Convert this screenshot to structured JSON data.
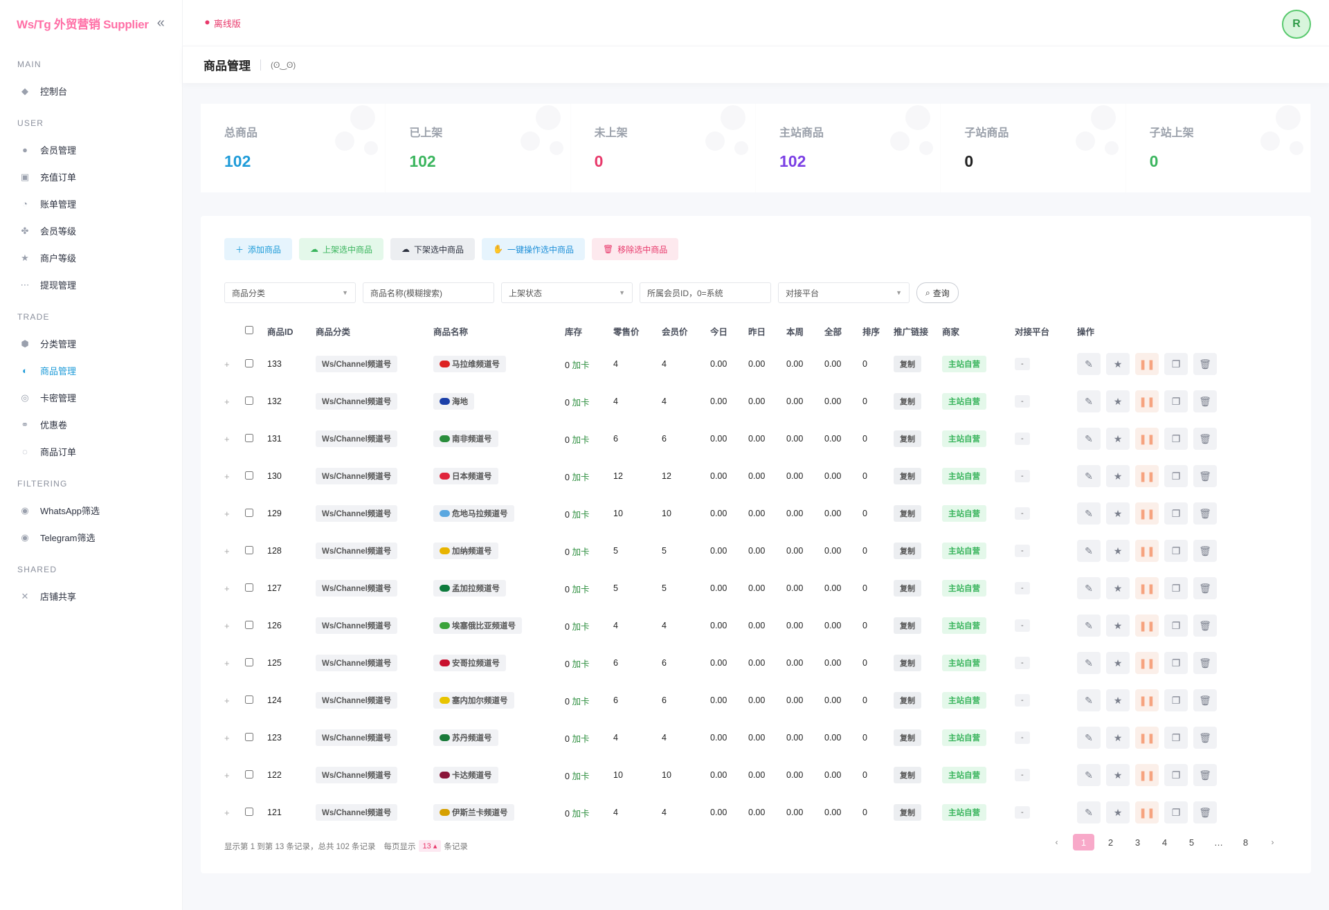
{
  "brand": "Ws/Tg 外贸营销 Supplier",
  "topbar": {
    "offline_label": "离线版"
  },
  "page": {
    "title": "商品管理",
    "emoji": "(ʘ‿ʘ)"
  },
  "sidebar": {
    "sections": [
      {
        "title": "MAIN",
        "items": [
          {
            "label": "控制台",
            "icon": "diamond-icon"
          }
        ]
      },
      {
        "title": "USER",
        "items": [
          {
            "label": "会员管理",
            "icon": "user-icon"
          },
          {
            "label": "充值订单",
            "icon": "card-icon"
          },
          {
            "label": "账单管理",
            "icon": "bill-icon"
          },
          {
            "label": "会员等级",
            "icon": "level-icon"
          },
          {
            "label": "商户等级",
            "icon": "star-icon"
          },
          {
            "label": "提现管理",
            "icon": "dots-icon"
          }
        ]
      },
      {
        "title": "TRADE",
        "items": [
          {
            "label": "分类管理",
            "icon": "category-icon"
          },
          {
            "label": "商品管理",
            "icon": "goods-icon",
            "active": true
          },
          {
            "label": "卡密管理",
            "icon": "key-icon"
          },
          {
            "label": "优惠卷",
            "icon": "coupon-icon"
          },
          {
            "label": "商品订单",
            "icon": "order-icon"
          }
        ]
      },
      {
        "title": "FILTERING",
        "items": [
          {
            "label": "WhatsApp筛选",
            "icon": "whatsapp-icon"
          },
          {
            "label": "Telegram筛选",
            "icon": "telegram-icon"
          }
        ]
      },
      {
        "title": "SHARED",
        "items": [
          {
            "label": "店铺共享",
            "icon": "share-icon"
          }
        ]
      }
    ]
  },
  "stats": [
    {
      "label": "总商品",
      "value": "102",
      "color": "#1e9bd8"
    },
    {
      "label": "已上架",
      "value": "102",
      "color": "#3bb55e"
    },
    {
      "label": "未上架",
      "value": "0",
      "color": "#e8396b"
    },
    {
      "label": "主站商品",
      "value": "102",
      "color": "#7b3fe4"
    },
    {
      "label": "子站商品",
      "value": "0",
      "color": "#222222"
    },
    {
      "label": "子站上架",
      "value": "0",
      "color": "#3bb55e"
    }
  ],
  "toolbar": {
    "add": "添加商品",
    "shelve": "上架选中商品",
    "unshelve": "下架选中商品",
    "batch": "一键操作选中商品",
    "remove": "移除选中商品"
  },
  "filters": {
    "category": "商品分类",
    "name_placeholder": "商品名称(模糊搜索)",
    "status": "上架状态",
    "member_placeholder": "所属会员ID，0=系统",
    "platform": "对接平台",
    "query": "查询"
  },
  "table": {
    "headers": [
      "商品ID",
      "商品分类",
      "商品名称",
      "库存",
      "零售价",
      "会员价",
      "今日",
      "昨日",
      "本周",
      "全部",
      "排序",
      "推广链接",
      "商家",
      "对接平台",
      "操作"
    ],
    "rows": [
      {
        "id": "133",
        "category": "Ws/Channel频道号",
        "name": "马拉维频道号",
        "flag": "#d22",
        "stock": "0",
        "stock_label": "加卡",
        "retail": "4",
        "member": "4",
        "today": "0.00",
        "yesterday": "0.00",
        "week": "0.00",
        "total": "0.00",
        "sort": "0",
        "link": "复制",
        "merchant": "主站自营",
        "platform": "-"
      },
      {
        "id": "132",
        "category": "Ws/Channel频道号",
        "name": "海地",
        "flag": "#1b3fa8",
        "stock": "0",
        "stock_label": "加卡",
        "retail": "4",
        "member": "4",
        "today": "0.00",
        "yesterday": "0.00",
        "week": "0.00",
        "total": "0.00",
        "sort": "0",
        "link": "复制",
        "merchant": "主站自营",
        "platform": "-"
      },
      {
        "id": "131",
        "category": "Ws/Channel频道号",
        "name": "南非频道号",
        "flag": "#2a8d3c",
        "stock": "0",
        "stock_label": "加卡",
        "retail": "6",
        "member": "6",
        "today": "0.00",
        "yesterday": "0.00",
        "week": "0.00",
        "total": "0.00",
        "sort": "0",
        "link": "复制",
        "merchant": "主站自营",
        "platform": "-"
      },
      {
        "id": "130",
        "category": "Ws/Channel频道号",
        "name": "日本频道号",
        "flag": "#e0243c",
        "stock": "0",
        "stock_label": "加卡",
        "retail": "12",
        "member": "12",
        "today": "0.00",
        "yesterday": "0.00",
        "week": "0.00",
        "total": "0.00",
        "sort": "0",
        "link": "复制",
        "merchant": "主站自营",
        "platform": "-"
      },
      {
        "id": "129",
        "category": "Ws/Channel频道号",
        "name": "危地马拉频道号",
        "flag": "#5aa7e0",
        "stock": "0",
        "stock_label": "加卡",
        "retail": "10",
        "member": "10",
        "today": "0.00",
        "yesterday": "0.00",
        "week": "0.00",
        "total": "0.00",
        "sort": "0",
        "link": "复制",
        "merchant": "主站自营",
        "platform": "-"
      },
      {
        "id": "128",
        "category": "Ws/Channel频道号",
        "name": "加纳频道号",
        "flag": "#e8b400",
        "stock": "0",
        "stock_label": "加卡",
        "retail": "5",
        "member": "5",
        "today": "0.00",
        "yesterday": "0.00",
        "week": "0.00",
        "total": "0.00",
        "sort": "0",
        "link": "复制",
        "merchant": "主站自营",
        "platform": "-"
      },
      {
        "id": "127",
        "category": "Ws/Channel频道号",
        "name": "孟加拉频道号",
        "flag": "#0d7a3c",
        "stock": "0",
        "stock_label": "加卡",
        "retail": "5",
        "member": "5",
        "today": "0.00",
        "yesterday": "0.00",
        "week": "0.00",
        "total": "0.00",
        "sort": "0",
        "link": "复制",
        "merchant": "主站自营",
        "platform": "-"
      },
      {
        "id": "126",
        "category": "Ws/Channel频道号",
        "name": "埃塞俄比亚频道号",
        "flag": "#3ba33b",
        "stock": "0",
        "stock_label": "加卡",
        "retail": "4",
        "member": "4",
        "today": "0.00",
        "yesterday": "0.00",
        "week": "0.00",
        "total": "0.00",
        "sort": "0",
        "link": "复制",
        "merchant": "主站自营",
        "platform": "-"
      },
      {
        "id": "125",
        "category": "Ws/Channel频道号",
        "name": "安哥拉频道号",
        "flag": "#c8102e",
        "stock": "0",
        "stock_label": "加卡",
        "retail": "6",
        "member": "6",
        "today": "0.00",
        "yesterday": "0.00",
        "week": "0.00",
        "total": "0.00",
        "sort": "0",
        "link": "复制",
        "merchant": "主站自营",
        "platform": "-"
      },
      {
        "id": "124",
        "category": "Ws/Channel频道号",
        "name": "塞内加尔频道号",
        "flag": "#e8c400",
        "stock": "0",
        "stock_label": "加卡",
        "retail": "6",
        "member": "6",
        "today": "0.00",
        "yesterday": "0.00",
        "week": "0.00",
        "total": "0.00",
        "sort": "0",
        "link": "复制",
        "merchant": "主站自营",
        "platform": "-"
      },
      {
        "id": "123",
        "category": "Ws/Channel频道号",
        "name": "苏丹频道号",
        "flag": "#1a7a3a",
        "stock": "0",
        "stock_label": "加卡",
        "retail": "4",
        "member": "4",
        "today": "0.00",
        "yesterday": "0.00",
        "week": "0.00",
        "total": "0.00",
        "sort": "0",
        "link": "复制",
        "merchant": "主站自营",
        "platform": "-"
      },
      {
        "id": "122",
        "category": "Ws/Channel频道号",
        "name": "卡达频道号",
        "flag": "#8a1538",
        "stock": "0",
        "stock_label": "加卡",
        "retail": "10",
        "member": "10",
        "today": "0.00",
        "yesterday": "0.00",
        "week": "0.00",
        "total": "0.00",
        "sort": "0",
        "link": "复制",
        "merchant": "主站自营",
        "platform": "-"
      },
      {
        "id": "121",
        "category": "Ws/Channel频道号",
        "name": "伊斯兰卡频道号",
        "flag": "#d6a000",
        "stock": "0",
        "stock_label": "加卡",
        "retail": "4",
        "member": "4",
        "today": "0.00",
        "yesterday": "0.00",
        "week": "0.00",
        "total": "0.00",
        "sort": "0",
        "link": "复制",
        "merchant": "主站自营",
        "platform": "-"
      }
    ]
  },
  "footer": {
    "info_prefix": "显示第 1 到第 13 条记录，总共 102 条记录",
    "per_page_prefix": "每页显示",
    "page_size": "13",
    "per_page_suffix": "条记录"
  },
  "pager": {
    "prev": "‹",
    "pages": [
      "1",
      "2",
      "3",
      "4",
      "5",
      "…",
      "8"
    ],
    "next": "›",
    "current": "1"
  }
}
